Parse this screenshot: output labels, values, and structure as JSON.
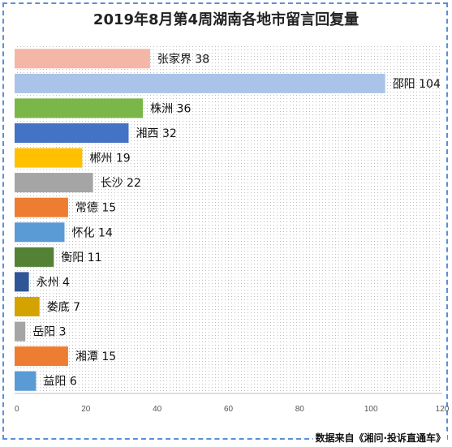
{
  "chart_data": {
    "type": "bar",
    "orientation": "horizontal",
    "title": "2019年8月第4周湖南各地市留言回复量",
    "categories": [
      "张家界",
      "邵阳",
      "株洲",
      "湘西",
      "郴州",
      "长沙",
      "常德",
      "怀化",
      "衡阳",
      "永州",
      "娄底",
      "岳阳",
      "湘潭",
      "益阳"
    ],
    "values": [
      38,
      104,
      36,
      32,
      19,
      22,
      15,
      14,
      11,
      4,
      7,
      3,
      15,
      6
    ],
    "colors": [
      "#f4b6a6",
      "#a9c4e8",
      "#7ab648",
      "#4472c4",
      "#ffc000",
      "#a5a5a5",
      "#ed7d31",
      "#5b9bd5",
      "#548235",
      "#2f5597",
      "#d4a300",
      "#a5a5a5",
      "#ed7d31",
      "#5b9bd5"
    ],
    "xlim": [
      0,
      120
    ],
    "xticks": [
      0,
      20,
      40,
      60,
      80,
      100,
      120
    ],
    "xlabel": "",
    "ylabel": "",
    "grid": false,
    "legend": "none",
    "background_pattern": "dotted"
  },
  "footer": "数据来自《湘问·投诉直通车》"
}
